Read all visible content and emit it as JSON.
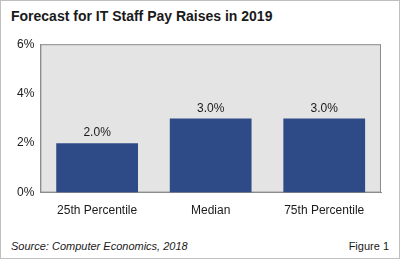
{
  "chart_data": {
    "type": "bar",
    "title": "Forecast for IT Staff Pay Raises in 2019",
    "categories": [
      "25th Percentile",
      "Median",
      "75th Percentile"
    ],
    "values": [
      2.0,
      3.0,
      3.0
    ],
    "value_labels": [
      "2.0%",
      "3.0%",
      "3.0%"
    ],
    "data_labels": true,
    "color": "#2e4b87",
    "ylim": [
      0,
      6
    ],
    "yticks": [
      {
        "value": 0,
        "label": "0%"
      },
      {
        "value": 2,
        "label": "2%"
      },
      {
        "value": 4,
        "label": "4%"
      },
      {
        "value": 6,
        "label": "6%"
      }
    ],
    "grid": false,
    "annotations": [
      "Source: Computer Economics, 2018",
      "Figure 1"
    ]
  }
}
